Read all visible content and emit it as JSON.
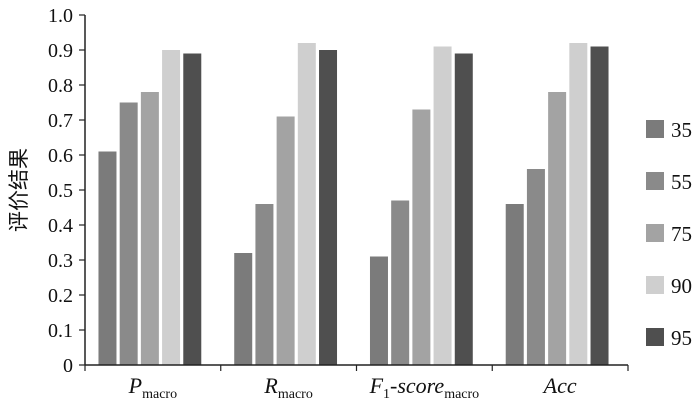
{
  "chart_data": {
    "type": "bar",
    "title": "",
    "xlabel": "",
    "ylabel": "评价结果",
    "ylim": [
      0,
      1.0
    ],
    "yticks": [
      "0",
      "0.1",
      "0.2",
      "0.3",
      "0.4",
      "0.5",
      "0.6",
      "0.7",
      "0.8",
      "0.9",
      "1.0"
    ],
    "grid": false,
    "legend_position": "right",
    "categories": [
      {
        "main": "P",
        "sub": "macro",
        "sub_style": "subscript",
        "sub_after": true
      },
      {
        "main": "R",
        "sub": "macro",
        "sub_style": "subscript",
        "sub_after": true
      },
      {
        "main": "F",
        "sub": "1",
        "rest": "-score",
        "sub2": "macro",
        "sub_style": "subscript"
      },
      {
        "main": "Acc",
        "sub": "",
        "sub_style": "none"
      }
    ],
    "series": [
      {
        "name": "35",
        "color": "#7b7b7b",
        "values": [
          0.61,
          0.32,
          0.31,
          0.46
        ]
      },
      {
        "name": "55",
        "color": "#8a8a8a",
        "values": [
          0.75,
          0.46,
          0.47,
          0.56
        ]
      },
      {
        "name": "75",
        "color": "#a3a3a3",
        "values": [
          0.78,
          0.71,
          0.73,
          0.78
        ]
      },
      {
        "name": "90",
        "color": "#cfcfcf",
        "values": [
          0.9,
          0.92,
          0.91,
          0.92
        ]
      },
      {
        "name": "95",
        "color": "#4f4f4f",
        "values": [
          0.89,
          0.9,
          0.89,
          0.91
        ]
      }
    ]
  }
}
